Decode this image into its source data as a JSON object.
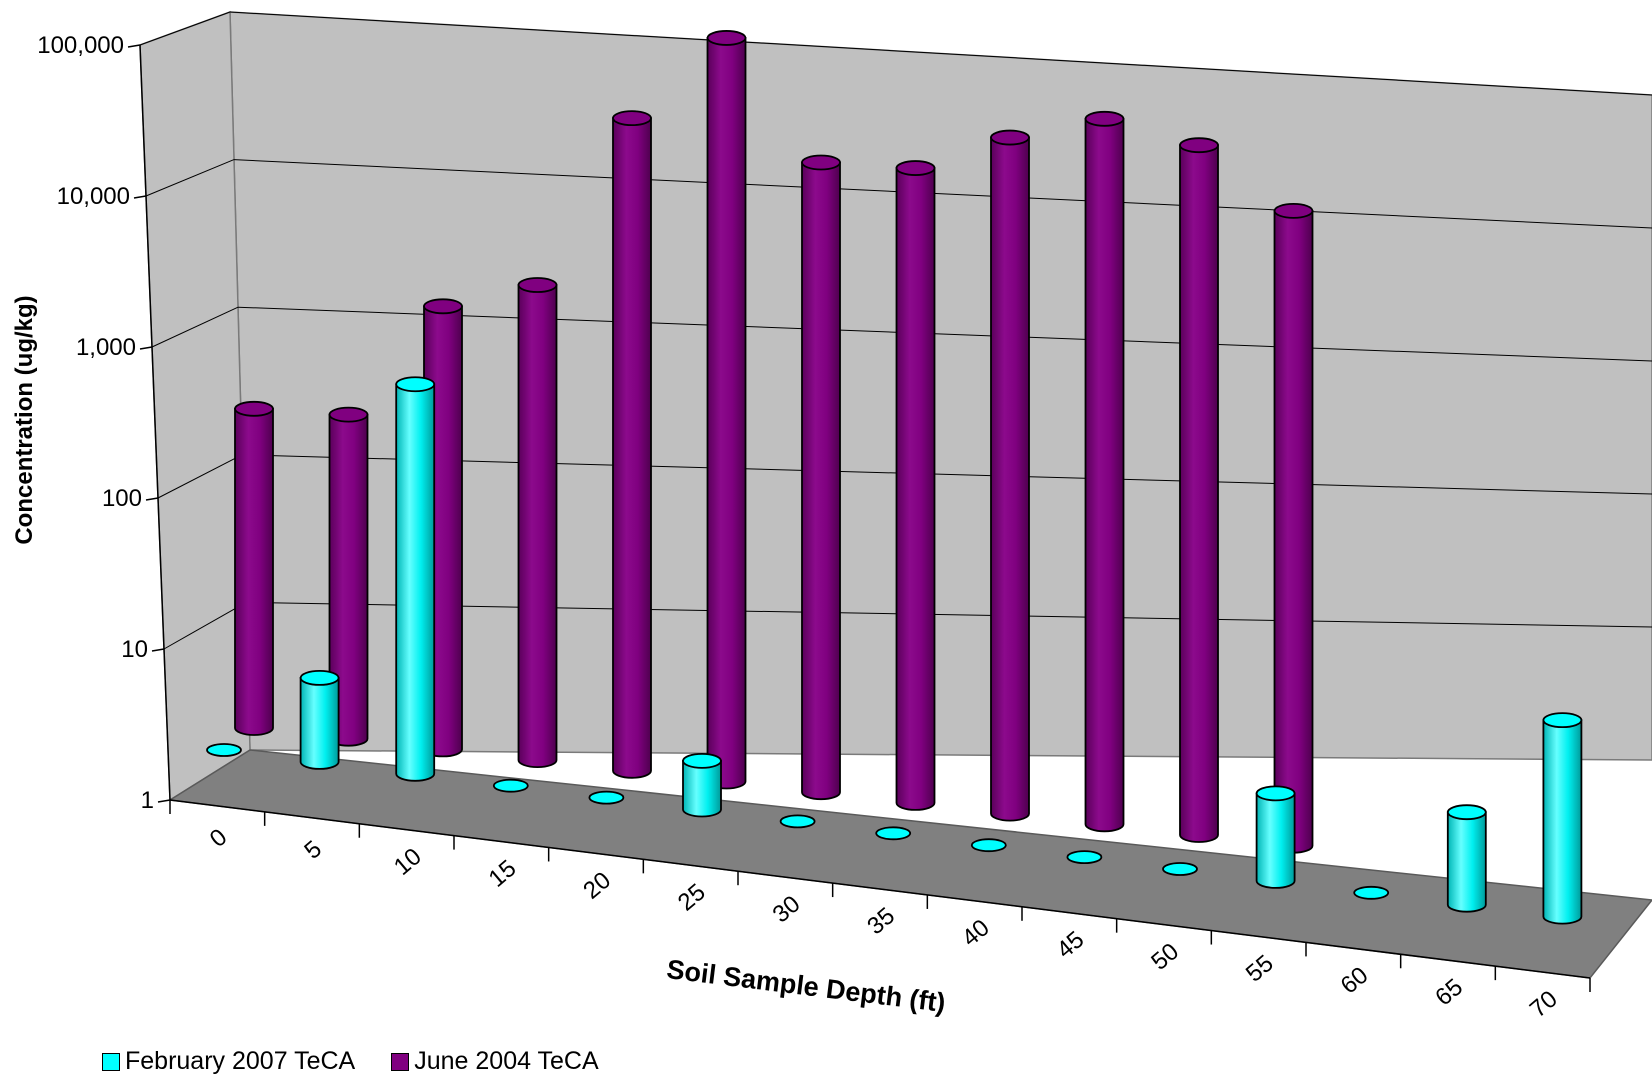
{
  "chart_data": {
    "type": "bar",
    "style": "3d-cylinder",
    "xlabel": "Soil Sample Depth (ft)",
    "ylabel": "Concentration (ug/kg)",
    "y_scale": "log",
    "ylim": [
      1,
      100000
    ],
    "y_ticks": [
      "1",
      "10",
      "100",
      "1,000",
      "10,000",
      "100,000"
    ],
    "categories": [
      "0",
      "5",
      "10",
      "15",
      "20",
      "25",
      "30",
      "35",
      "40",
      "45",
      "50",
      "55",
      "60",
      "65",
      "70"
    ],
    "grid": true,
    "legend_position": "bottom-left",
    "series": [
      {
        "name": "February 2007 TeCA",
        "color": "#00FFFF",
        "values": [
          null,
          3.6,
          380,
          null,
          null,
          2.1,
          null,
          null,
          null,
          null,
          null,
          3.8,
          null,
          4.1,
          20
        ]
      },
      {
        "name": "June 2004 TeCA",
        "color": "#800080",
        "values": [
          130,
          140,
          860,
          1400,
          21000,
          84000,
          14800,
          16000,
          30000,
          47000,
          37000,
          16000,
          null,
          null,
          null
        ]
      }
    ]
  }
}
